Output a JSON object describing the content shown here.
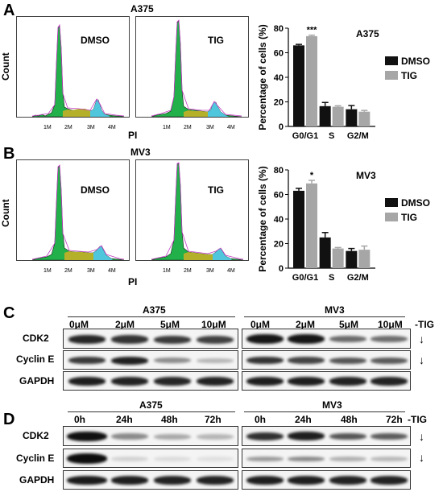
{
  "panels": {
    "A": {
      "letter": "A",
      "cell_line": "A375",
      "y_axis_label": "Count",
      "x_axis_label": "PI",
      "hist_labels": [
        "DMSO",
        "TIG"
      ],
      "x_ticks": [
        "1M",
        "2M",
        "3M",
        "4M"
      ]
    },
    "B": {
      "letter": "B",
      "cell_line": "MV3",
      "y_axis_label": "Count",
      "x_axis_label": "PI",
      "hist_labels": [
        "DMSO",
        "TIG"
      ],
      "x_ticks": [
        "1M",
        "2M",
        "3M",
        "4M"
      ]
    },
    "C": {
      "letter": "C",
      "groups": [
        "A375",
        "MV3"
      ],
      "lanes": [
        "0μM",
        "2μM",
        "5μM",
        "10μM",
        "0μM",
        "2μM",
        "5μM",
        "10μM"
      ],
      "treatment": "-TIG",
      "rows": [
        "CDK2",
        "Cyclin E",
        "GAPDH"
      ]
    },
    "D": {
      "letter": "D",
      "groups": [
        "A375",
        "MV3"
      ],
      "lanes": [
        "0h",
        "24h",
        "48h",
        "72h",
        "0h",
        "24h",
        "48h",
        "72h"
      ],
      "treatment": "-TIG",
      "rows": [
        "CDK2",
        "Cyclin E",
        "GAPDH"
      ]
    }
  },
  "chart_data": [
    {
      "type": "bar",
      "title": "A375",
      "ylabel": "Percentage of cells (%)",
      "categories": [
        "G0/G1",
        "S",
        "G2/M"
      ],
      "ylim": [
        0,
        80
      ],
      "yticks": [
        "0",
        "20",
        "40",
        "60",
        "80"
      ],
      "series": [
        {
          "name": "DMSO",
          "color": "#111111",
          "values": [
            66,
            16.5,
            14
          ],
          "errors": [
            0.8,
            3,
            3
          ]
        },
        {
          "name": "TIG",
          "color": "#a6a6a6",
          "values": [
            73.5,
            16,
            12
          ],
          "errors": [
            0.8,
            0.8,
            1
          ]
        }
      ],
      "annotation": "***",
      "legend": "right"
    },
    {
      "type": "bar",
      "title": "MV3",
      "ylabel": "Percentage of cells (%)",
      "categories": [
        "G0/G1",
        "S",
        "G2/M"
      ],
      "ylim": [
        0,
        80
      ],
      "yticks": [
        "0",
        "20",
        "40",
        "60",
        "80"
      ],
      "series": [
        {
          "name": "DMSO",
          "color": "#111111",
          "values": [
            63,
            25,
            14
          ],
          "errors": [
            2,
            4,
            2
          ]
        },
        {
          "name": "TIG",
          "color": "#a6a6a6",
          "values": [
            69,
            16,
            15
          ],
          "errors": [
            2.5,
            0.8,
            3
          ]
        }
      ],
      "annotation": "*",
      "legend": "right"
    }
  ],
  "colors": {
    "g1": "#22b04a",
    "s_phase": "#b5b02a",
    "g2": "#4fc6dc",
    "envelope": "#c23bc2"
  }
}
